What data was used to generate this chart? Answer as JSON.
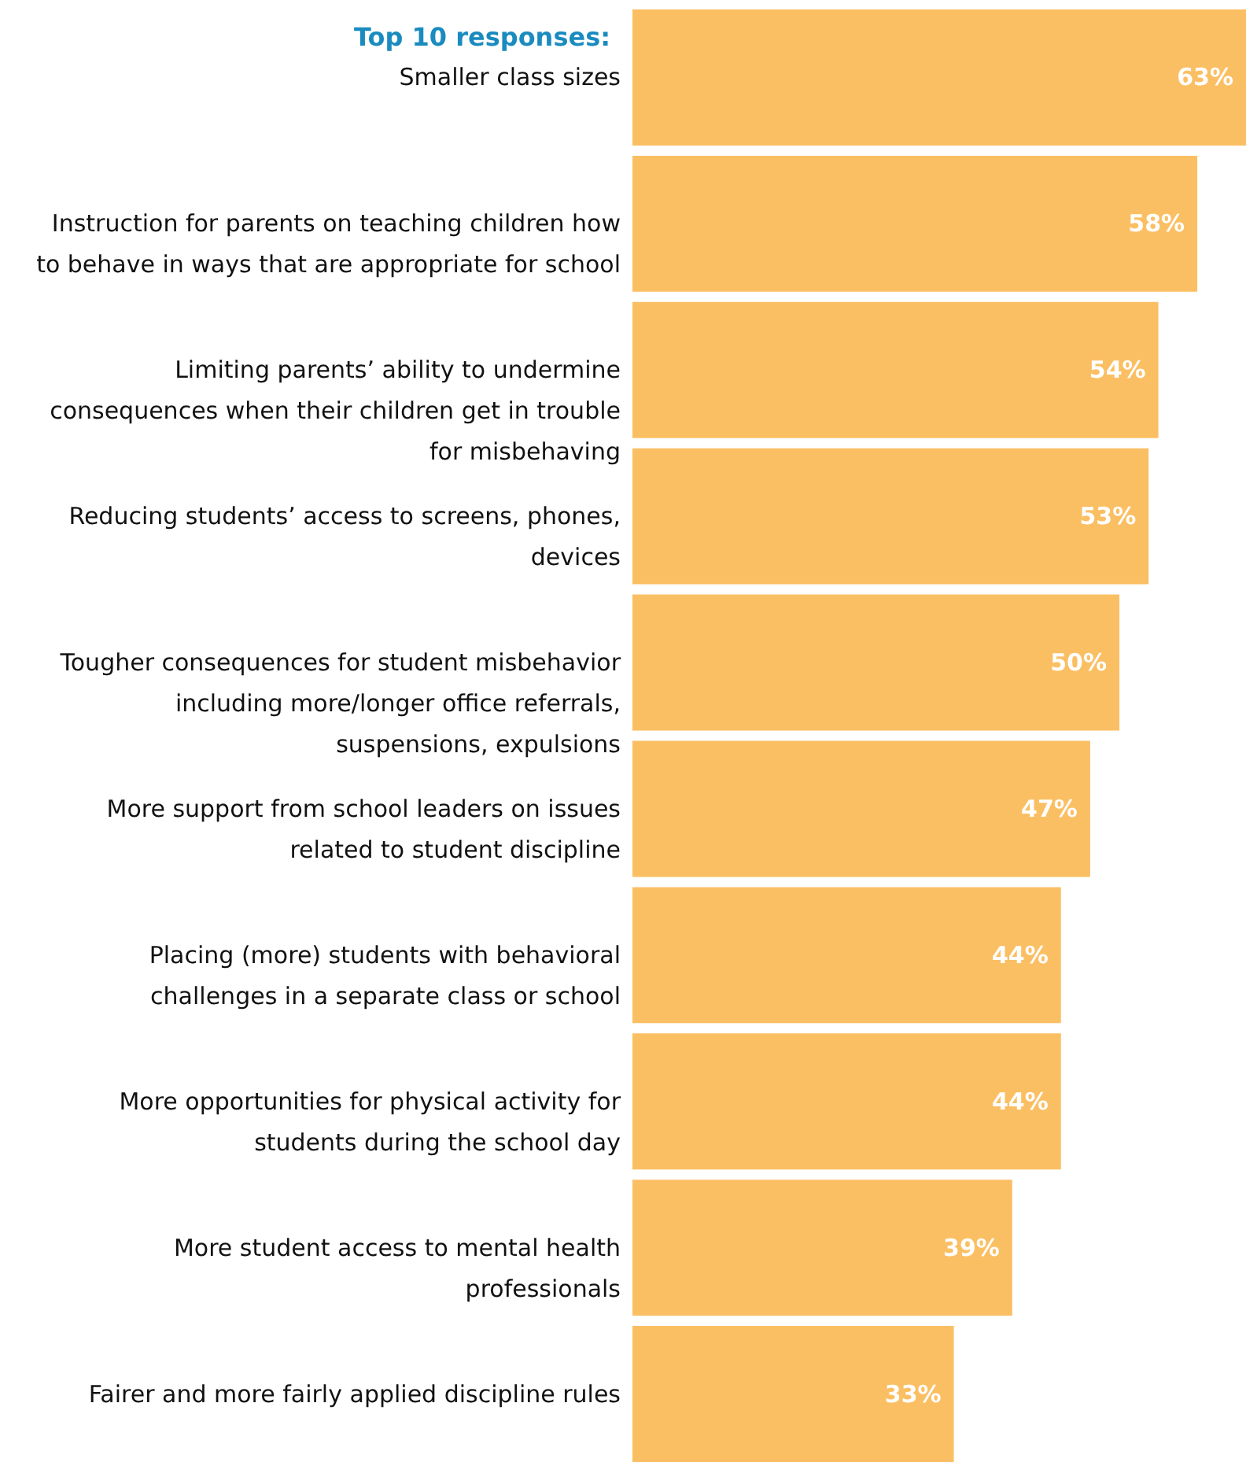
{
  "chart_data": {
    "type": "bar",
    "orientation": "horizontal",
    "title": "Top 10 responses:",
    "categories": [
      "Smaller class sizes",
      "Instruction for parents on teaching children how to behave in ways that are appropriate for school",
      "Limiting parents’ ability to undermine consequences when their children get in trouble for misbehaving",
      "Reducing students’ access to screens, phones, devices",
      "Tougher consequences for student misbehavior including more/longer office referrals, suspensions, expulsions",
      "More support from school leaders on issues related to student discipline",
      "Placing (more) students with behavioral challenges in a separate class or school",
      "More opportunities for physical activity for students during the school day",
      "More student access to mental health professionals",
      "Fairer and more fairly applied discipline rules"
    ],
    "values": [
      63,
      58,
      54,
      53,
      50,
      47,
      44,
      44,
      39,
      33
    ],
    "value_labels": [
      "63%",
      "58%",
      "54%",
      "53%",
      "50%",
      "47%",
      "44%",
      "44%",
      "39%",
      "33%"
    ],
    "color": "#fbbf63",
    "tick_labels": "y"
  }
}
